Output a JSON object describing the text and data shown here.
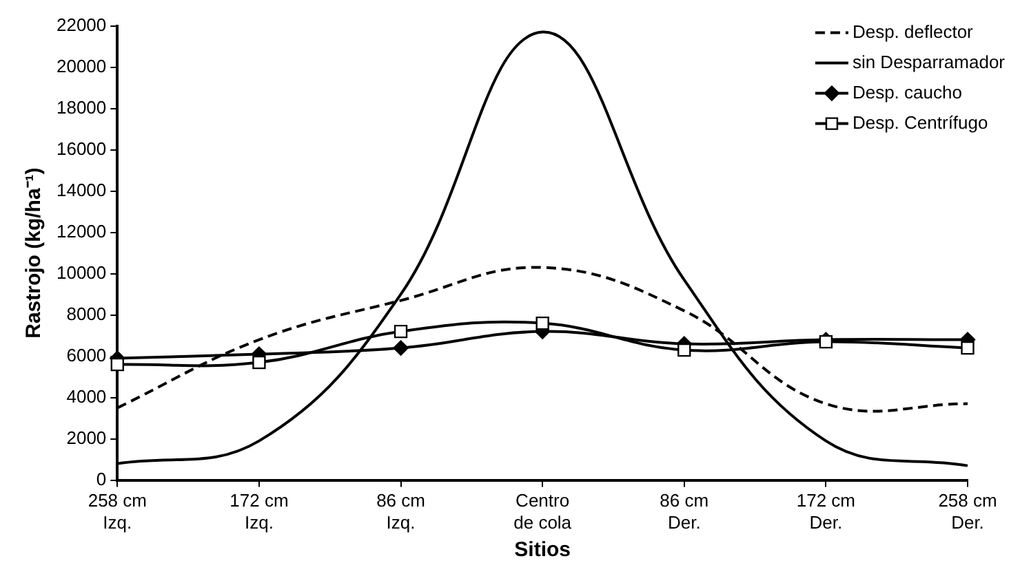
{
  "chart_data": {
    "type": "line",
    "xlabel": "Sitios",
    "ylabel": "Rastrojo (kg/ha⁻¹)",
    "categories": [
      "258 cm\nIzq.",
      "172 cm\nIzq.",
      "86 cm\nIzq.",
      "Centro\nde cola",
      "86 cm\nDer.",
      "172 cm\nDer.",
      "258 cm\nDer."
    ],
    "ylim": [
      0,
      22000
    ],
    "yticks": [
      0,
      2000,
      4000,
      6000,
      8000,
      10000,
      12000,
      14000,
      16000,
      18000,
      20000,
      22000
    ],
    "legend": "top right",
    "series": [
      {
        "name": "Desp. deflector",
        "color": "#000000",
        "line_style": "dashed",
        "marker": "none",
        "values": [
          3500,
          6800,
          8700,
          10300,
          8200,
          3700,
          3700
        ]
      },
      {
        "name": "sin Desparramador",
        "color": "#000000",
        "line_style": "solid",
        "marker": "none",
        "values": [
          800,
          1900,
          9000,
          21700,
          9700,
          1900,
          700
        ]
      },
      {
        "name": "Desp. caucho",
        "color": "#000000",
        "line_style": "solid",
        "marker": "diamond",
        "values": [
          5900,
          6100,
          6400,
          7200,
          6600,
          6800,
          6800
        ]
      },
      {
        "name": "Desp. Centrífugo",
        "color": "#000000",
        "line_style": "solid",
        "marker": "square",
        "values": [
          5600,
          5700,
          7200,
          7600,
          6300,
          6700,
          6400
        ]
      }
    ]
  }
}
